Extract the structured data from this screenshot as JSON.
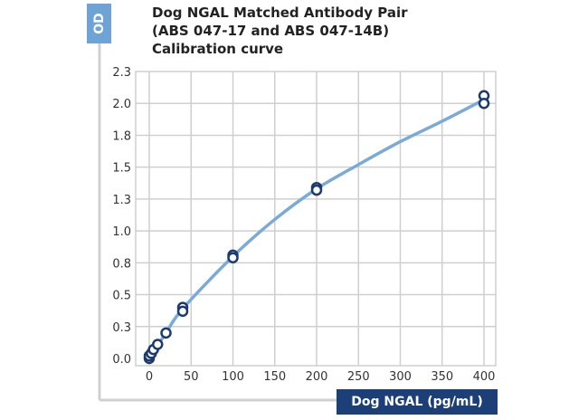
{
  "chart_data": {
    "type": "scatter",
    "title": "Dog NGAL Matched Antibody Pair (ABS 047-17 and ABS 047-14B) Calibration curve",
    "title_lines": [
      "Dog NGAL Matched Antibody Pair",
      "(ABS 047-17 and ABS 047-14B)",
      "Calibration curve"
    ],
    "xlabel": "Dog NGAL (pg/mL)",
    "ylabel": "OD",
    "xlim": [
      0,
      400
    ],
    "ylim": [
      0,
      2.25
    ],
    "x_ticks": [
      0,
      50,
      100,
      150,
      200,
      250,
      300,
      350,
      400
    ],
    "x_tick_labels": [
      "0",
      "50",
      "100",
      "150",
      "200",
      "250",
      "300",
      "350",
      "400"
    ],
    "y_ticks": [
      0,
      0.25,
      0.5,
      0.75,
      1.0,
      1.25,
      1.5,
      1.75,
      2.0,
      2.25
    ],
    "y_tick_labels": [
      "0.0",
      "0.3",
      "0.5",
      "0.8",
      "1.0",
      "1.3",
      "1.5",
      "1.8",
      "2.0",
      "2.3"
    ],
    "grid": true,
    "points": [
      [
        0,
        0.0
      ],
      [
        0,
        0.02
      ],
      [
        2.5,
        0.04
      ],
      [
        5,
        0.07
      ],
      [
        10,
        0.11
      ],
      [
        20,
        0.2
      ],
      [
        40,
        0.4
      ],
      [
        40,
        0.37
      ],
      [
        100,
        0.81
      ],
      [
        100,
        0.79
      ],
      [
        200,
        1.34
      ],
      [
        200,
        1.32
      ],
      [
        400,
        2.06
      ],
      [
        400,
        2.0
      ]
    ],
    "fit_curve": [
      [
        0,
        0
      ],
      [
        20,
        0.2
      ],
      [
        40,
        0.39
      ],
      [
        100,
        0.8
      ],
      [
        150,
        1.09
      ],
      [
        200,
        1.33
      ],
      [
        250,
        1.52
      ],
      [
        300,
        1.7
      ],
      [
        350,
        1.86
      ],
      [
        400,
        2.03
      ]
    ],
    "colors": {
      "curve": "#7aaad9",
      "point_stroke": "#1b3a6e",
      "od_box": "#6ea3d6",
      "xlabel_box": "#1d3f78",
      "grid": "#cfcfcf"
    }
  }
}
